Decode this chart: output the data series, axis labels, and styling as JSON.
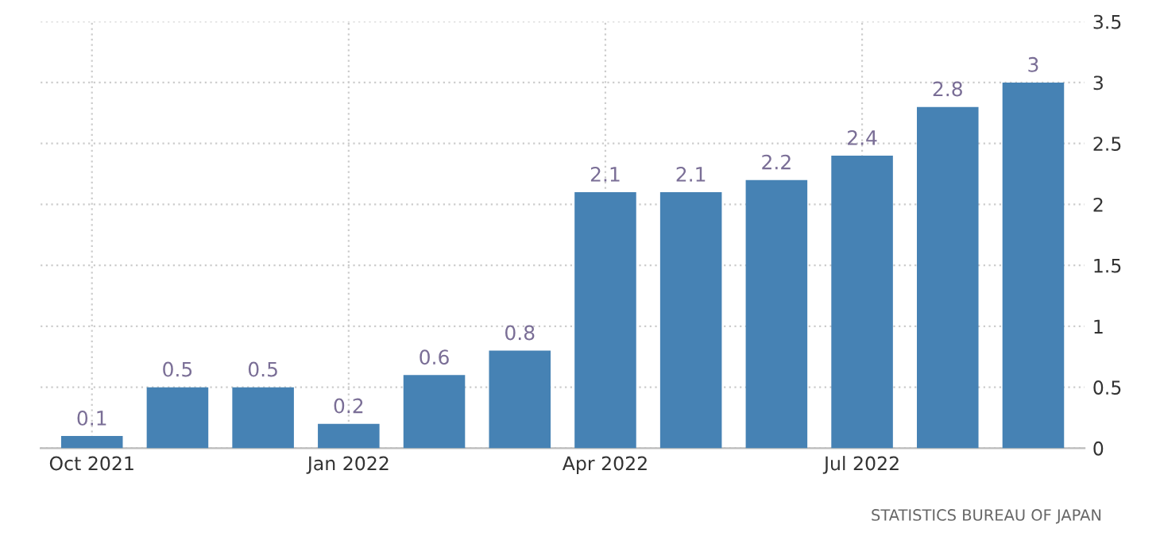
{
  "chart_data": {
    "type": "bar",
    "categories": [
      "Oct 2021",
      null,
      null,
      "Jan 2022",
      null,
      null,
      "Apr 2022",
      null,
      null,
      "Jul 2022",
      null,
      null
    ],
    "values": [
      0.1,
      0.5,
      0.5,
      0.2,
      0.6,
      0.8,
      2.1,
      2.1,
      2.2,
      2.4,
      2.8,
      3
    ],
    "color": "#4682b4",
    "ylim": [
      0,
      3.5
    ],
    "yticks": [
      0,
      0.5,
      1,
      1.5,
      2,
      2.5,
      3,
      3.5
    ],
    "grid": true,
    "data_labels": true,
    "annotations": [
      "STATISTICS BUREAU OF JAPAN"
    ]
  }
}
